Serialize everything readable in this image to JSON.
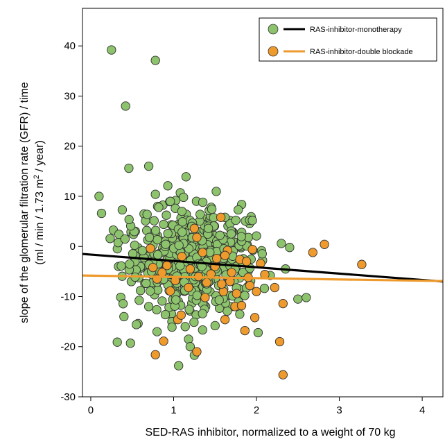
{
  "chart_data": {
    "type": "scatter",
    "title": "",
    "xlabel": "SED-RAS inhibitor, normalized to a weight of 70 kg",
    "ylabel_line1": "slope of the glomerular filtration rate  (GFR) / time",
    "ylabel_line2_pre": "(ml / min / 1.73 m",
    "ylabel_line2_sup": "2",
    "ylabel_line2_post": " / year)",
    "xlim": [
      -0.1,
      4.25
    ],
    "ylim": [
      -30,
      47.5
    ],
    "xticks": [
      0,
      1,
      2,
      3,
      4
    ],
    "yticks": [
      -30,
      -20,
      -10,
      0,
      10,
      20,
      30,
      40
    ],
    "xtick_labels": [
      "0",
      "1",
      "2",
      "3",
      "4"
    ],
    "ytick_labels": [
      "-30",
      "-20",
      "-10",
      "0",
      "10",
      "20",
      "30",
      "40"
    ],
    "grid": false,
    "legend_position": "top-right",
    "series": [
      {
        "name": "RAS-inhibitor-monotherapy",
        "color": "#8cc36c",
        "regression": {
          "x": [
            -0.1,
            4.25
          ],
          "y": [
            -1.5,
            -7.0
          ]
        },
        "points": [
          [
            0.25,
            39.2
          ],
          [
            0.78,
            37.1
          ],
          [
            0.42,
            28.0
          ],
          [
            0.46,
            15.6
          ],
          [
            0.7,
            16.0
          ],
          [
            1.15,
            13.9
          ],
          [
            0.1,
            10.0
          ],
          [
            0.13,
            6.6
          ],
          [
            0.38,
            7.3
          ],
          [
            0.78,
            10.4
          ],
          [
            0.93,
            12.1
          ],
          [
            1.08,
            10.7
          ],
          [
            1.12,
            9.8
          ],
          [
            1.32,
            6.4
          ],
          [
            1.62,
            5.8
          ],
          [
            1.78,
            7.3
          ],
          [
            1.95,
            5.2
          ],
          [
            2.0,
            2.1
          ],
          [
            0.66,
            5.1
          ],
          [
            0.68,
            6.4
          ],
          [
            0.82,
            7.8
          ],
          [
            0.96,
            9.0
          ],
          [
            1.02,
            7.6
          ],
          [
            1.1,
            7.0
          ],
          [
            0.88,
            4.4
          ],
          [
            1.22,
            4.0
          ],
          [
            1.42,
            3.6
          ],
          [
            1.18,
            -18.5
          ],
          [
            1.2,
            -20.0
          ],
          [
            1.25,
            -21.7
          ],
          [
            0.98,
            -16.1
          ],
          [
            0.8,
            -17.0
          ],
          [
            1.06,
            -23.8
          ],
          [
            0.32,
            -19.1
          ],
          [
            0.48,
            -19.3
          ],
          [
            0.55,
            -15.6
          ],
          [
            1.5,
            -15.8
          ],
          [
            2.02,
            -17.2
          ],
          [
            2.5,
            -10.5
          ],
          [
            2.6,
            -10.2
          ],
          [
            2.35,
            -4.5
          ],
          [
            2.4,
            -0.2
          ],
          [
            2.3,
            0.6
          ],
          [
            1.55,
            -10.7
          ],
          [
            1.35,
            -13.4
          ],
          [
            1.14,
            -16.0
          ],
          [
            0.9,
            -13.6
          ],
          [
            0.7,
            -12.0
          ],
          [
            0.6,
            -8.8
          ],
          [
            0.4,
            -14.0
          ]
        ],
        "cluster": {
          "seed": 11,
          "count": 480,
          "x_range": [
            0.05,
            2.35
          ],
          "y_center": -3.0,
          "y_spread": 5.0
        }
      },
      {
        "name": "RAS-inhibitor-double blockade",
        "color": "#ee9a2c",
        "regression": {
          "x": [
            -0.1,
            4.25
          ],
          "y": [
            -5.8,
            -6.9
          ]
        },
        "points": [
          [
            0.78,
            -21.6
          ],
          [
            0.88,
            -18.9
          ],
          [
            1.28,
            -21.0
          ],
          [
            1.05,
            -14.6
          ],
          [
            1.09,
            -13.7
          ],
          [
            2.28,
            -19.0
          ],
          [
            2.32,
            -25.6
          ],
          [
            2.32,
            -11.4
          ],
          [
            3.27,
            -3.6
          ],
          [
            2.82,
            0.4
          ],
          [
            2.68,
            -1.2
          ],
          [
            1.57,
            5.8
          ],
          [
            1.25,
            3.6
          ],
          [
            1.86,
            -16.8
          ],
          [
            1.98,
            -14.2
          ],
          [
            1.62,
            -14.6
          ],
          [
            1.74,
            -12.0
          ],
          [
            1.82,
            -11.8
          ],
          [
            1.6,
            -9.0
          ],
          [
            2.0,
            -9.0
          ],
          [
            2.22,
            -8.2
          ],
          [
            1.4,
            -7.2
          ],
          [
            0.8,
            -6.5
          ],
          [
            0.96,
            -8.9
          ],
          [
            1.5,
            -4.0
          ],
          [
            1.7,
            -5.2
          ],
          [
            1.9,
            -6.2
          ],
          [
            2.05,
            -3.4
          ],
          [
            1.1,
            -2.0
          ],
          [
            0.92,
            -3.8
          ],
          [
            1.35,
            -1.2
          ],
          [
            1.65,
            -0.8
          ],
          [
            1.8,
            -2.6
          ],
          [
            1.45,
            -5.5
          ],
          [
            1.2,
            -4.5
          ],
          [
            0.75,
            -4.2
          ],
          [
            1.02,
            -6.8
          ],
          [
            1.58,
            -7.5
          ],
          [
            1.76,
            -9.4
          ],
          [
            1.88,
            -3.0
          ],
          [
            2.1,
            -5.6
          ],
          [
            0.72,
            -0.4
          ],
          [
            1.28,
            1.8
          ],
          [
            1.95,
            -0.6
          ],
          [
            1.52,
            -2.4
          ],
          [
            1.38,
            -10.2
          ],
          [
            1.68,
            -7.0
          ],
          [
            1.18,
            -8.2
          ],
          [
            0.86,
            -5.2
          ],
          [
            1.62,
            -1.8
          ],
          [
            1.3,
            -6.0
          ],
          [
            1.92,
            -7.8
          ]
        ]
      }
    ]
  }
}
